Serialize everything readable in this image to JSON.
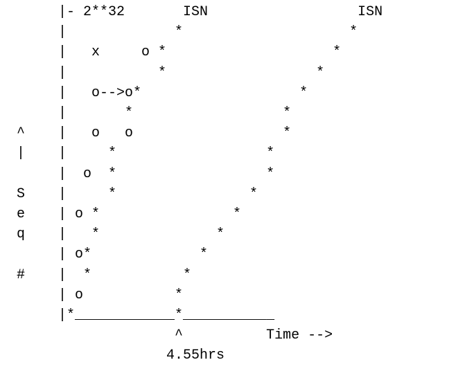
{
  "diagram": {
    "title": "",
    "lines": [
      "       |- 2**32       ISN                  ISN",
      "       |             *                    *",
      "       |   x     o *                    *",
      "       |           *                  *",
      "       |   o-->o*                   *",
      "       |       *                  *",
      "  ^    |   o   o                  *",
      "  |    |     *                  *",
      "       |  o  *                  *",
      "  S    |     *                *",
      "  e    | o *                *",
      "  q    |   *              *",
      "       | o*             *",
      "  #    |  *           *",
      "       | o           *",
      "       |*____________*___________",
      "                     ^          Time -->",
      "                    4.55hrs"
    ],
    "labels": {
      "top_left": "- 2**32",
      "isn_first": "ISN",
      "isn_second": "ISN",
      "loop_marker": "x",
      "y_axis_caret": "^",
      "y_axis_stem": "|",
      "y_axis_letters": [
        "S",
        "e",
        "q",
        "#"
      ],
      "x_axis_caret": "^",
      "x_axis_label": "Time -->",
      "time_marker": "4.55hrs"
    }
  }
}
